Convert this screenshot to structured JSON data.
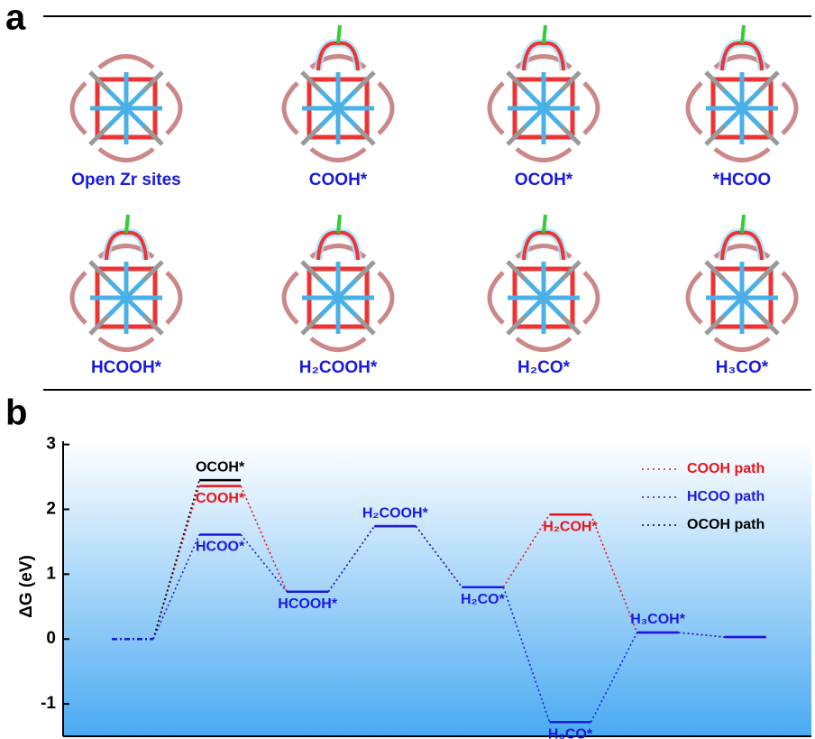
{
  "panel_a": {
    "panel_label": "a",
    "structures": [
      "Open Zr sites",
      "COOH*",
      "OCOH*",
      "*HCOO",
      "HCOOH*",
      "H₂COOH*",
      "H₂CO*",
      "H₃CO*"
    ]
  },
  "chart_data": {
    "type": "energy-diagram",
    "panel_label": "b",
    "ylabel": "ΔG (eV)",
    "categories": [
      null,
      null,
      null,
      null,
      null,
      null,
      null,
      null
    ],
    "ylim": [
      -1.5,
      3.05
    ],
    "yticks": [
      -1,
      0,
      1,
      2,
      3
    ],
    "legend": "upper right",
    "series": [
      {
        "name": "COOH path",
        "color": "#e8141c",
        "values": [
          0,
          2.36,
          0.73,
          1.74,
          0.8,
          1.92,
          0.1,
          0.03
        ],
        "labels": [
          null,
          "COOH*",
          null,
          null,
          null,
          "H₂COH*",
          null,
          null
        ]
      },
      {
        "name": "HCOO path",
        "color": "#1a1ae0",
        "values": [
          0,
          1.61,
          0.73,
          1.74,
          0.8,
          -1.28,
          0.1,
          0.03
        ],
        "labels": [
          null,
          "HCOO*",
          "HCOOH*",
          "H₂COOH*",
          "H₂CO*",
          "H₃CO*",
          "H₃COH*",
          null
        ]
      },
      {
        "name": "OCOH path",
        "color": "#000000",
        "values": [
          0,
          2.45,
          null,
          null,
          null,
          null,
          null,
          null
        ],
        "labels": [
          null,
          "OCOH*",
          null,
          null,
          null,
          null,
          null,
          null
        ]
      }
    ]
  }
}
